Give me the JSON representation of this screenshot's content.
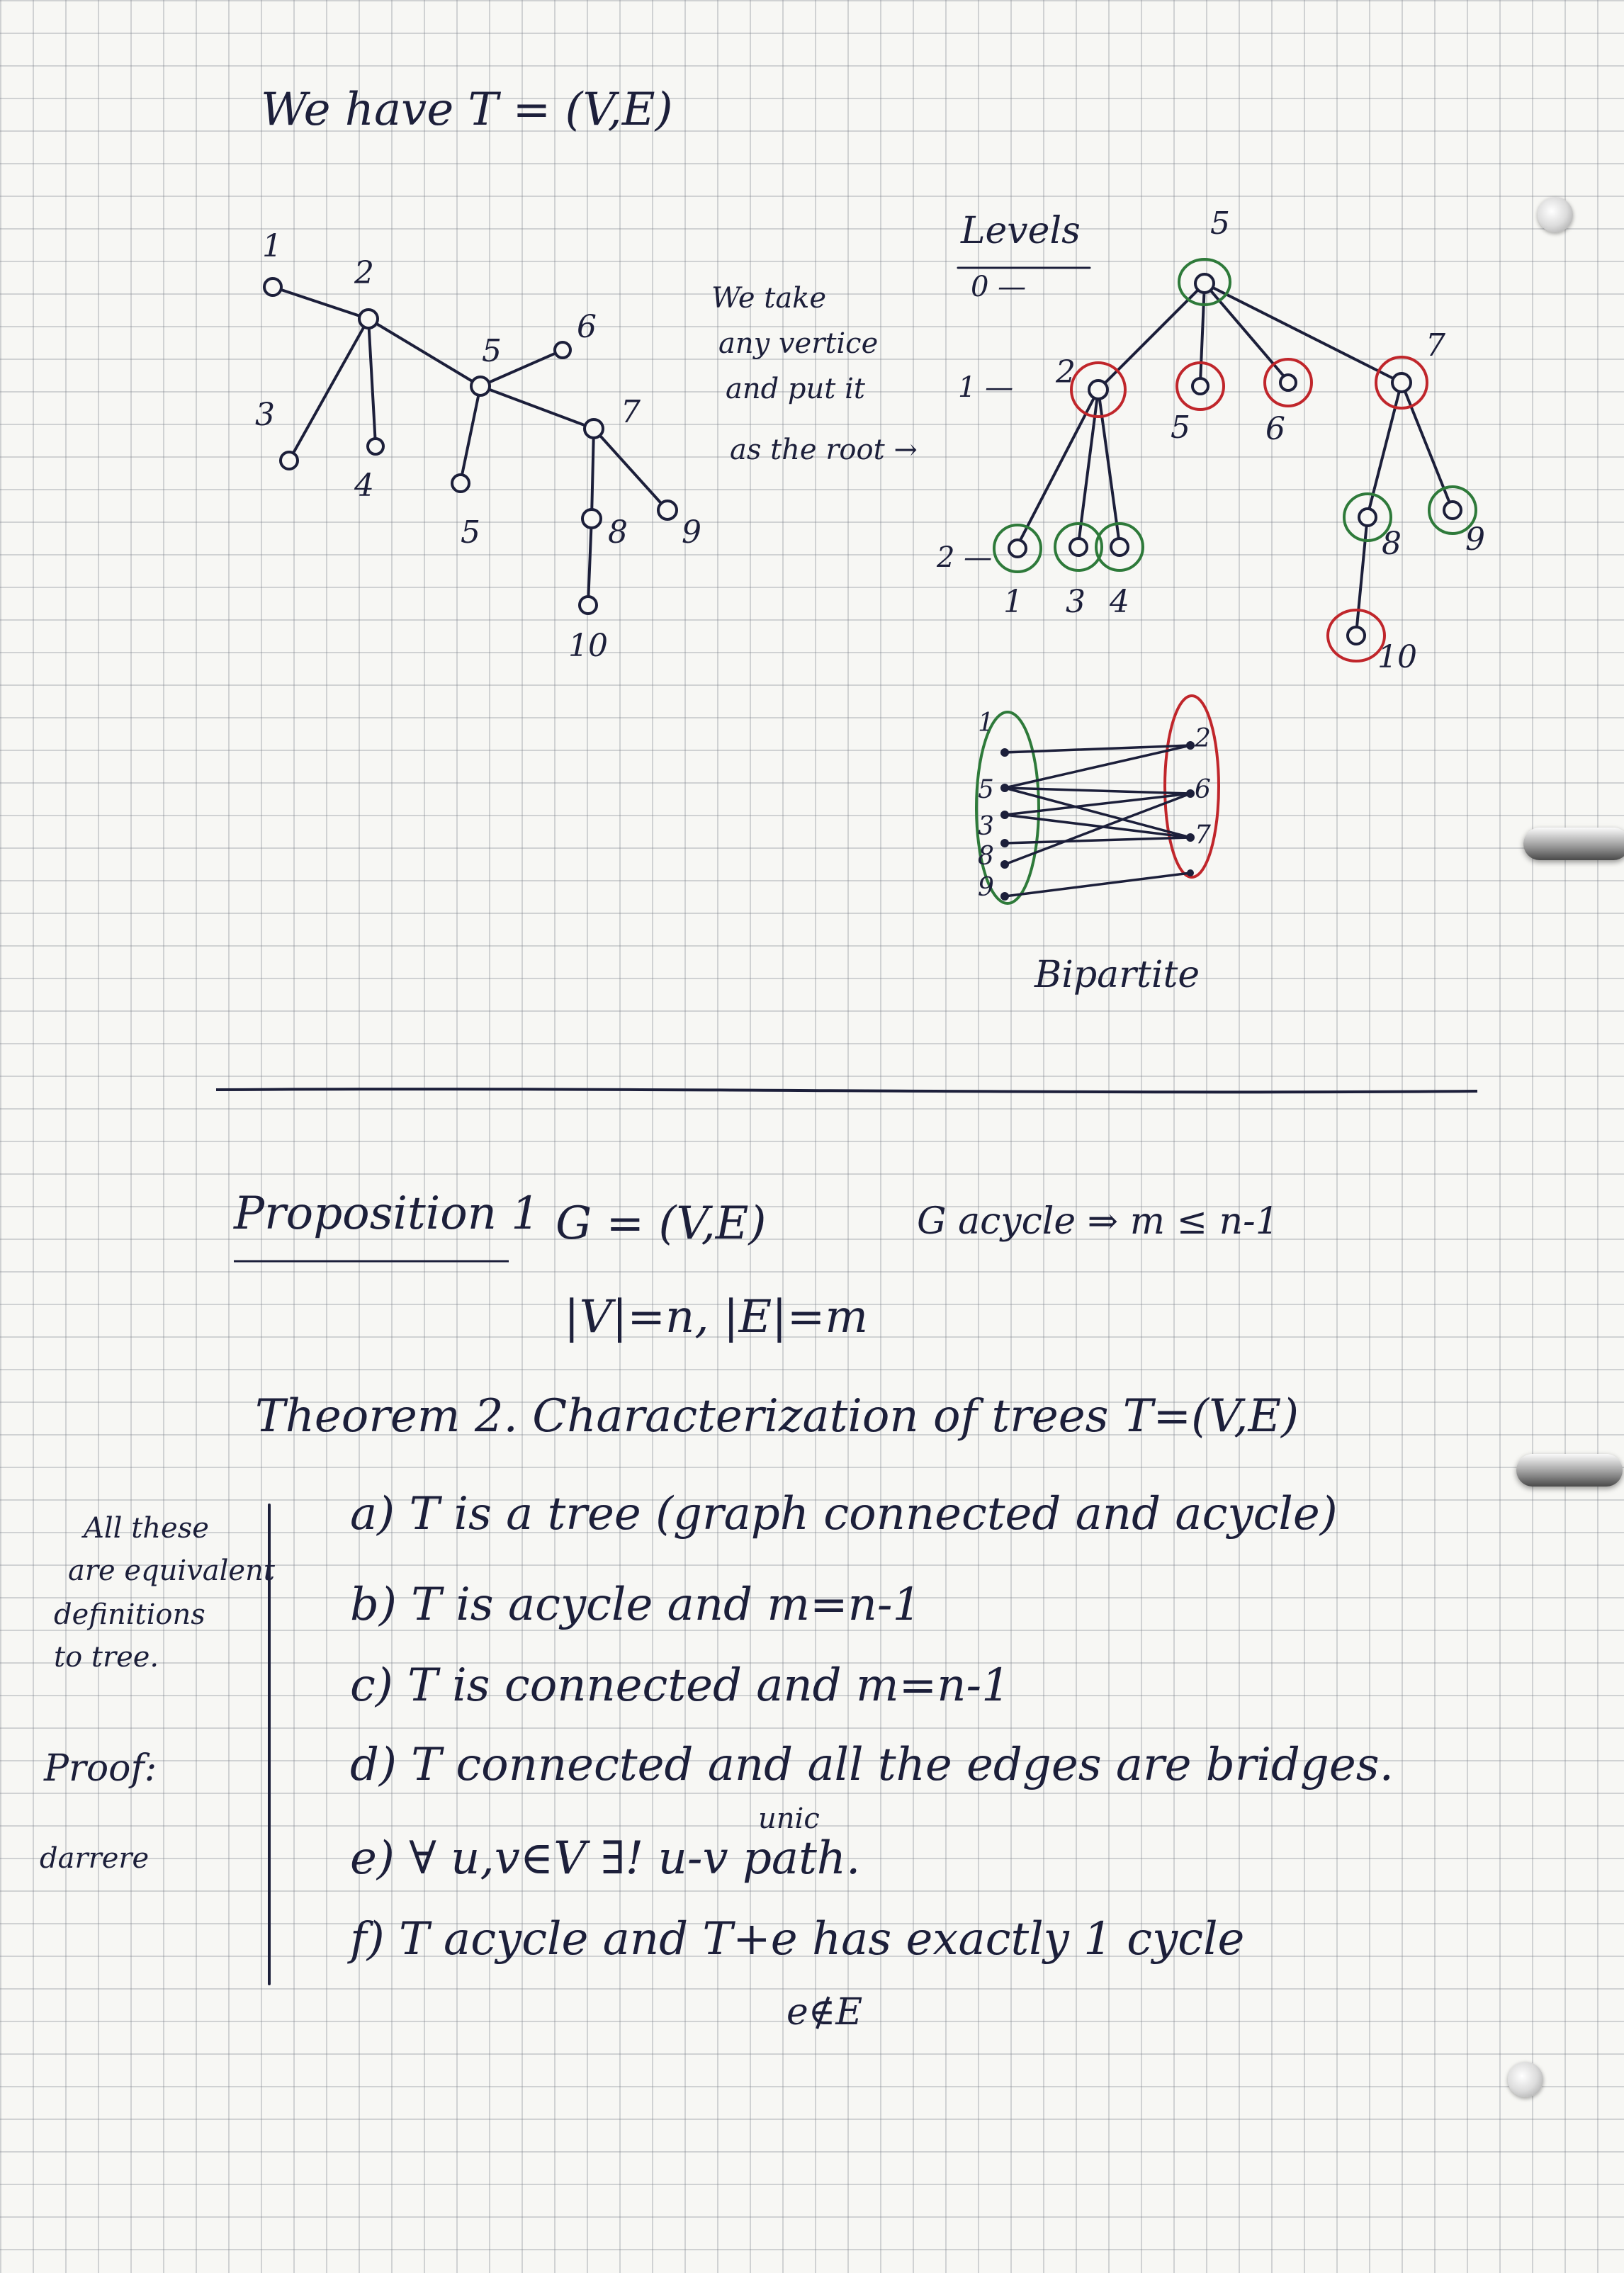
{
  "title": "We have T = (V,E)",
  "tree1": {
    "labels": [
      "1",
      "2",
      "3",
      "4",
      "5",
      "6",
      "5",
      "7",
      "8",
      "9",
      "10"
    ]
  },
  "note_root": [
    "We take",
    "any vertice",
    "and put it",
    "as the root →"
  ],
  "levels": {
    "heading": "Levels",
    "markers": [
      "0 —",
      "1 —",
      "2 —"
    ]
  },
  "tree2": {
    "labels": [
      "5",
      "2",
      "5",
      "6",
      "7",
      "1",
      "3",
      "4",
      "8",
      "9",
      "10"
    ]
  },
  "bipartite": {
    "left_labels": [
      "1",
      "5",
      "3",
      "8",
      "9"
    ],
    "right_labels": [
      "2",
      "6",
      "7"
    ],
    "caption": "Bipartite"
  },
  "proposition": {
    "label": "Proposition 1",
    "graph": "G = (V,E)",
    "statement": "G acycle ⇒ m ≤ n-1",
    "sizes": "|V|=n, |E|=m"
  },
  "theorem": {
    "title": "Theorem 2. Characterization of trees   T=(V,E)",
    "items": [
      "a) T is a tree (graph connected and acycle)",
      "b) T is acycle and m=n-1",
      "c) T is connected and m=n-1",
      "d) T connected and all the edges are bridges.",
      "e) ∀ u,v∈V  ∃! u-v path.",
      "f) T acycle and T+e has exactly 1 cycle"
    ],
    "unic_note": "unic",
    "e_not_in_E": "e∉E"
  },
  "side_note": {
    "lines": [
      "All these",
      "are equivalent",
      "definitions",
      "to tree."
    ],
    "proof": "Proof:",
    "proof_word": "darrere"
  },
  "colors": {
    "ink": "#1c1f3a",
    "red": "#c0262b",
    "green": "#2e7a3a",
    "grid": "#787d87"
  }
}
